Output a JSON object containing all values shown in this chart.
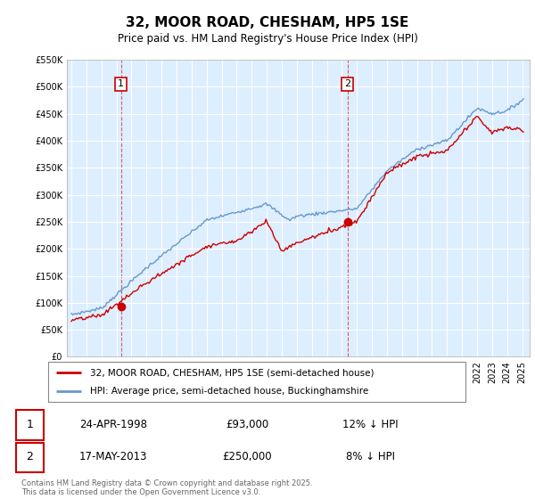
{
  "title": "32, MOOR ROAD, CHESHAM, HP5 1SE",
  "subtitle": "Price paid vs. HM Land Registry's House Price Index (HPI)",
  "footer": "Contains HM Land Registry data © Crown copyright and database right 2025.\nThis data is licensed under the Open Government Licence v3.0.",
  "legend_line1": "32, MOOR ROAD, CHESHAM, HP5 1SE (semi-detached house)",
  "legend_line2": "HPI: Average price, semi-detached house, Buckinghamshire",
  "transaction1_date": "24-APR-1998",
  "transaction1_price": "£93,000",
  "transaction1_hpi": "12% ↓ HPI",
  "transaction1_year": 1998.3,
  "transaction1_value": 93000,
  "transaction2_date": "17-MAY-2013",
  "transaction2_price": "£250,000",
  "transaction2_hpi": "8% ↓ HPI",
  "transaction2_year": 2013.37,
  "transaction2_value": 250000,
  "red_line_color": "#cc0000",
  "blue_line_color": "#6699cc",
  "plot_bg_color": "#ddeeff",
  "grid_color": "#ffffff",
  "ylim": [
    0,
    550000
  ],
  "yticks": [
    0,
    50000,
    100000,
    150000,
    200000,
    250000,
    300000,
    350000,
    400000,
    450000,
    500000,
    550000
  ],
  "background_color": "#ffffff"
}
